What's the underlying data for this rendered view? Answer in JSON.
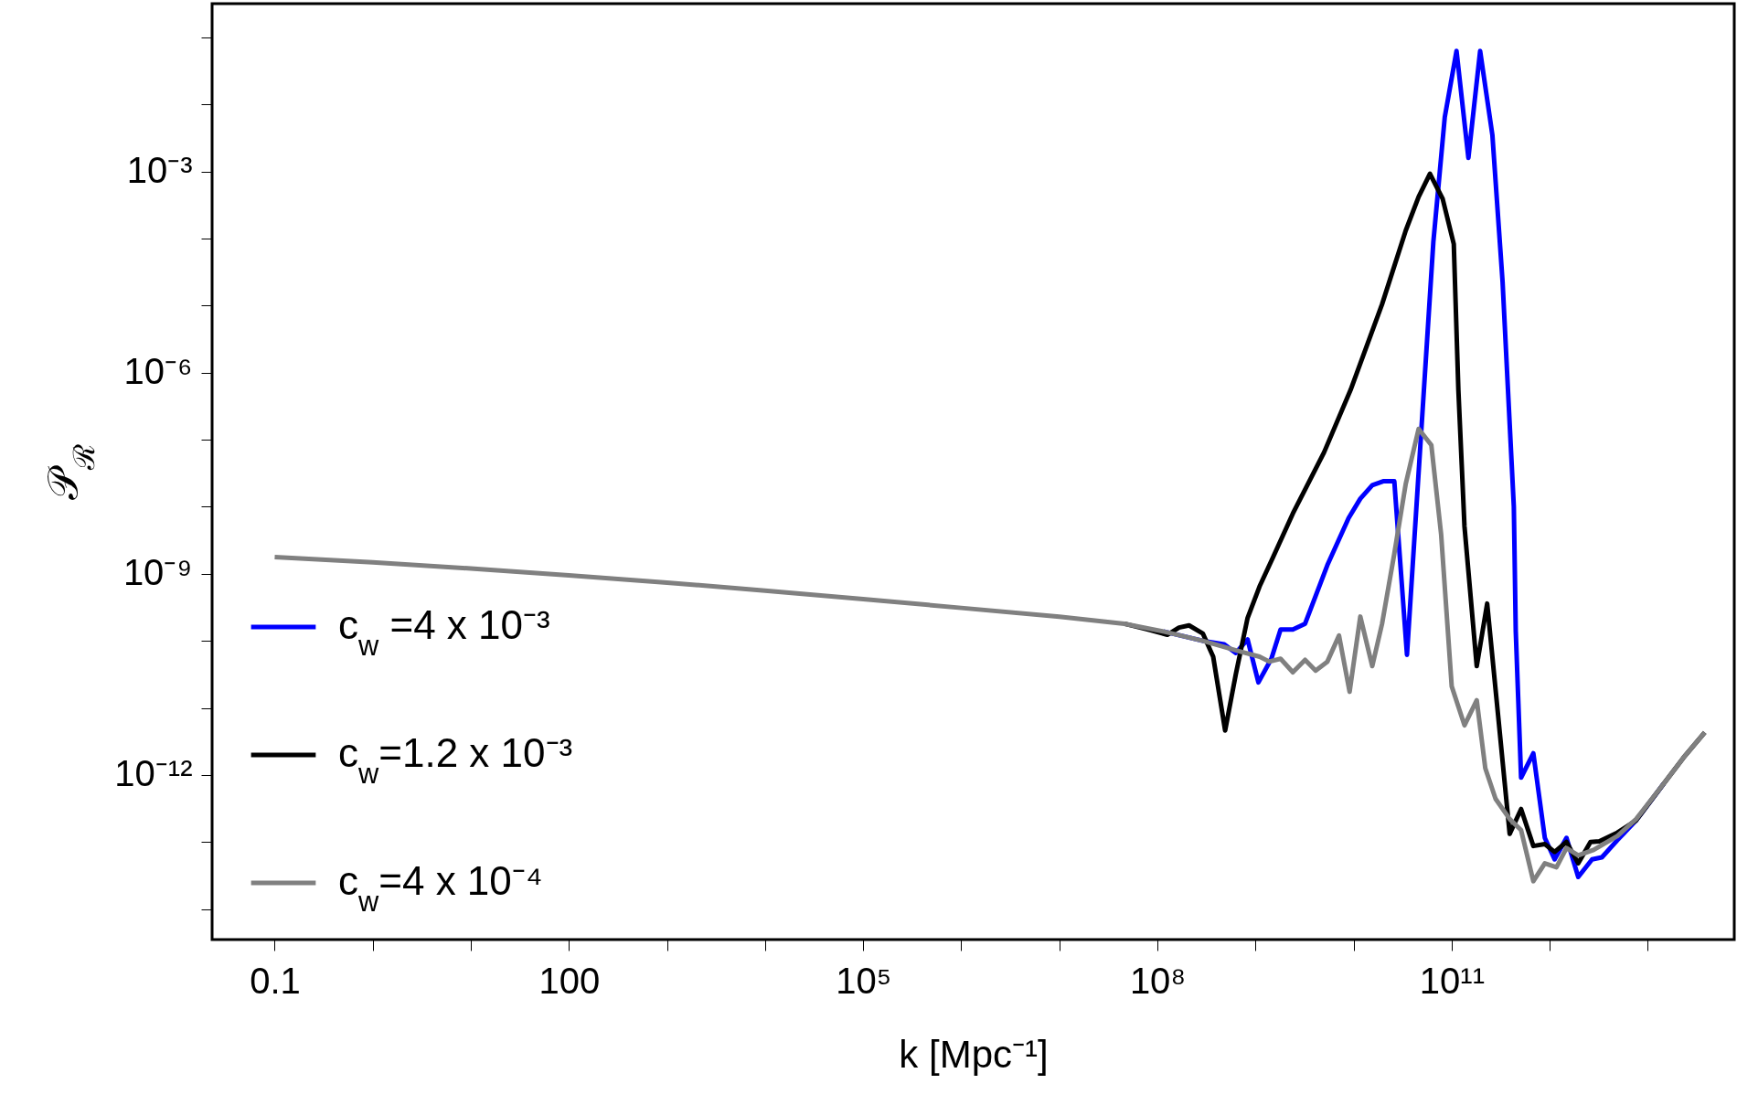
{
  "chart_data": {
    "type": "line",
    "xlabel": "k [Mpc⁻¹]",
    "ylabel": "𝒫$_{ℛ}$",
    "log": "xy",
    "legend": "bottom left",
    "grid": false,
    "xlim": [
      0.023,
      76000000000000.0
    ],
    "ylim": [
      3.5e-15,
      0.32
    ],
    "xticks": [
      {
        "value": 0.1,
        "label": "0.1"
      },
      {
        "value": 1,
        "label": null
      },
      {
        "value": 10,
        "label": null
      },
      {
        "value": 100,
        "label": "100"
      },
      {
        "value": 1000,
        "label": null
      },
      {
        "value": 10000,
        "label": null
      },
      {
        "value": 100000,
        "label": "10⁵"
      },
      {
        "value": 1000000,
        "label": null
      },
      {
        "value": 10000000,
        "label": null
      },
      {
        "value": 100000000,
        "label": "10⁸"
      },
      {
        "value": 1000000000,
        "label": null
      },
      {
        "value": 10000000000,
        "label": null
      },
      {
        "value": 100000000000,
        "label": "10¹¹"
      },
      {
        "value": 1000000000000,
        "label": null
      },
      {
        "value": 10000000000000,
        "label": null
      }
    ],
    "yticks": [
      {
        "value": 1e-14,
        "label": null
      },
      {
        "value": 1e-13,
        "label": null
      },
      {
        "value": 1e-12,
        "label": "10⁻¹²"
      },
      {
        "value": 1e-11,
        "label": null
      },
      {
        "value": 1e-10,
        "label": null
      },
      {
        "value": 1e-09,
        "label": "10⁻⁹"
      },
      {
        "value": 1e-08,
        "label": null
      },
      {
        "value": 1e-07,
        "label": null
      },
      {
        "value": 1e-06,
        "label": "10⁻⁶"
      },
      {
        "value": 1e-05,
        "label": null
      },
      {
        "value": 0.0001,
        "label": null
      },
      {
        "value": 0.001,
        "label": "10⁻³"
      },
      {
        "value": 0.01,
        "label": null
      },
      {
        "value": 0.1,
        "label": null
      }
    ],
    "series": [
      {
        "name": "c$_{w}$ =4 x 10⁻³",
        "color": "#0000ff",
        "x": [
          115000000.0,
          290000000.0,
          480000000.0,
          630000000.0,
          830000000.0,
          1070000000.0,
          1450000000.0,
          1800000000.0,
          2400000000.0,
          3200000000.0,
          5400000000.0,
          8900000000.0,
          11700000000.0,
          15500000000.0,
          20000000000.0,
          26000000000.0,
          35000000000.0,
          65000000000.0,
          85000000000.0,
          112000000000.0,
          148000000000.0,
          195000000000.0,
          260000000000.0,
          330000000000.0,
          430000000000.0,
          450000000000.0,
          510000000000.0,
          680000000000.0,
          890000000000.0,
          1120000000000.0,
          1480000000000.0,
          1950000000000.0,
          2700000000000.0,
          3400000000000.0,
          4900000000000.0,
          7600000000000.0,
          14500000000000.0
        ],
        "values": [
          1.38e-10,
          1e-10,
          8.9e-11,
          6.6e-11,
          1.05e-10,
          2.4e-11,
          5.4e-11,
          1.48e-10,
          1.48e-10,
          1.8e-10,
          1.35e-09,
          6.8e-09,
          1.32e-08,
          2.1e-08,
          2.4e-08,
          2.4e-08,
          6.2e-11,
          8.9e-05,
          0.0065,
          0.063,
          0.0016,
          0.063,
          0.0035,
          2.3e-05,
          1e-08,
          1.38e-10,
          9.1e-13,
          2.1e-12,
          1.15e-13,
          5.5e-14,
          1.15e-13,
          3e-14,
          5.5e-14,
          5.9e-14,
          1.07e-13,
          2.1e-13,
          7.4e-13
        ]
      },
      {
        "name": "c$_{w}$=1.2 x 10⁻³",
        "color": "#000000",
        "x": [
          46000000.0,
          79000000.0,
          126000000.0,
          166000000.0,
          210000000.0,
          290000000.0,
          370000000.0,
          490000000.0,
          630000000.0,
          830000000.0,
          1100000000.0,
          1500000000.0,
          2400000000.0,
          5000000000.0,
          9300000000.0,
          19500000000.0,
          34000000000.0,
          46000000000.0,
          60000000000.0,
          81000000000.0,
          105000000000.0,
          117000000000.0,
          135000000000.0,
          180000000000.0,
          230000000000.0,
          390000000000.0,
          510000000000.0,
          680000000000.0,
          890000000000.0,
          1120000000000.0,
          1480000000000.0,
          1950000000000.0,
          2600000000000.0,
          3200000000000.0,
          4900000000000.0,
          7600000000000.0,
          14500000000000.0,
          23000000000000.0,
          38000000000000.0
        ],
        "values": [
          1.8e-10,
          1.48e-10,
          1.23e-10,
          1.58e-10,
          1.7e-10,
          1.29e-10,
          5.8e-11,
          4.6e-12,
          3.2e-11,
          2.2e-10,
          6.5e-10,
          1.74e-09,
          7.9e-09,
          6.5e-08,
          5.5e-07,
          1.05e-05,
          0.000132,
          0.00042,
          0.00093,
          0.00039,
          8.3e-05,
          5.5e-07,
          5.1e-09,
          4.2e-11,
          3.6e-10,
          1.32e-13,
          3.1e-13,
          8.7e-14,
          9.3e-14,
          7.1e-14,
          1e-13,
          4.8e-14,
          1e-13,
          1.02e-13,
          1.38e-13,
          2.1e-13,
          7.4e-13,
          1.8e-12,
          4.3e-12
        ]
      },
      {
        "name": "c$_{w}$=4 x 10⁻⁴",
        "color": "#808080",
        "x": [
          0.1,
          1,
          10,
          100,
          1000,
          10000,
          100000,
          1000000,
          10000000,
          46000000.0,
          115000000.0,
          290000000.0,
          660000000.0,
          1100000000.0,
          1380000000.0,
          1800000000.0,
          2400000000.0,
          3200000000.0,
          4100000000.0,
          5400000000.0,
          7100000000.0,
          9100000000.0,
          11700000000.0,
          15500000000.0,
          19500000000.0,
          26000000000.0,
          34000000000.0,
          46000000000.0,
          62000000000.0,
          78000000000.0,
          100000000000.0,
          135000000000.0,
          180000000000.0,
          220000000000.0,
          280000000000.0,
          390000000000.0,
          510000000000.0,
          680000000000.0,
          890000000000.0,
          1170000000000.0,
          1480000000000.0,
          1950000000000.0,
          2800000000000.0,
          4900000000000.0,
          7600000000000.0,
          14500000000000.0,
          23000000000000.0,
          38000000000000.0
        ],
        "values": [
          1.78e-09,
          1.48e-09,
          1.2e-09,
          9.5e-10,
          7.4e-10,
          5.6e-10,
          4.2e-10,
          3.1e-10,
          2.3e-10,
          1.8e-10,
          1.38e-10,
          1e-10,
          7.1e-11,
          5.8e-11,
          4.9e-11,
          5.4e-11,
          3.4e-11,
          5.2e-11,
          3.6e-11,
          4.9e-11,
          1.2e-10,
          1.74e-11,
          2.3e-10,
          4.2e-11,
          1.8e-10,
          2e-09,
          2.2e-08,
          1.45e-07,
          8.3e-08,
          3.9e-09,
          2.1e-11,
          5.5e-12,
          1.3e-11,
          1.26e-12,
          4.4e-13,
          2.2e-13,
          1.5e-13,
          2.6e-14,
          4.8e-14,
          4.2e-14,
          8.1e-14,
          6.3e-14,
          7.6e-14,
          1.23e-13,
          2.2e-13,
          7.4e-13,
          1.8e-12,
          4.3e-12
        ]
      }
    ]
  }
}
